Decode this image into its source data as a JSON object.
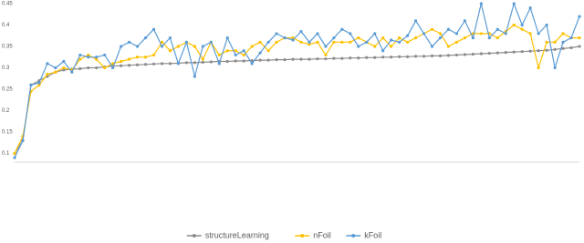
{
  "chart_data": {
    "type": "line",
    "categories": [
      null,
      null,
      null,
      null,
      null,
      null,
      null,
      null,
      null,
      null,
      null,
      null,
      null,
      null,
      null,
      null,
      null,
      null,
      null,
      null,
      null,
      null,
      null,
      null,
      null,
      null,
      null,
      null,
      null,
      null,
      null,
      null,
      null,
      null,
      null,
      null,
      null,
      null,
      null,
      null,
      null,
      null,
      null,
      null,
      null,
      null,
      null,
      null,
      null,
      null,
      null,
      null,
      null,
      null,
      null,
      null,
      null,
      null,
      null,
      null,
      null,
      null,
      null,
      null,
      null,
      null,
      null,
      null,
      null,
      null
    ],
    "series": [
      {
        "name": "structureLearning",
        "color": "#8c8c8c",
        "values": [
          0.1,
          0.13,
          0.26,
          0.27,
          0.28,
          0.29,
          0.295,
          0.297,
          0.298,
          0.3,
          0.3,
          0.302,
          0.304,
          0.305,
          0.306,
          0.307,
          0.308,
          0.309,
          0.31,
          0.31,
          0.311,
          0.312,
          0.312,
          0.313,
          0.314,
          0.315,
          0.315,
          0.316,
          0.316,
          0.317,
          0.318,
          0.318,
          0.319,
          0.319,
          0.32,
          0.32,
          0.32,
          0.321,
          0.321,
          0.322,
          0.322,
          0.323,
          0.323,
          0.324,
          0.324,
          0.325,
          0.325,
          0.326,
          0.326,
          0.327,
          0.327,
          0.328,
          0.328,
          0.329,
          0.33,
          0.331,
          0.332,
          0.333,
          0.334,
          0.335,
          0.336,
          0.337,
          0.338,
          0.339,
          0.34,
          0.341,
          0.343,
          0.345,
          0.347,
          0.35
        ]
      },
      {
        "name": "nFoil",
        "color": "#ffc000",
        "values": [
          0.1,
          0.14,
          0.245,
          0.26,
          0.285,
          0.29,
          0.3,
          0.295,
          0.32,
          0.33,
          0.32,
          0.3,
          0.31,
          0.315,
          0.32,
          0.325,
          0.325,
          0.33,
          0.36,
          0.34,
          0.35,
          0.36,
          0.35,
          0.32,
          0.36,
          0.33,
          0.34,
          0.34,
          0.33,
          0.35,
          0.36,
          0.34,
          0.36,
          0.37,
          0.37,
          0.36,
          0.355,
          0.36,
          0.33,
          0.36,
          0.36,
          0.36,
          0.37,
          0.36,
          0.35,
          0.37,
          0.35,
          0.37,
          0.36,
          0.37,
          0.38,
          0.39,
          0.38,
          0.35,
          0.36,
          0.37,
          0.38,
          0.38,
          0.38,
          0.37,
          0.385,
          0.4,
          0.39,
          0.38,
          0.3,
          0.36,
          0.36,
          0.38,
          0.37,
          0.37
        ]
      },
      {
        "name": "kFoil",
        "color": "#5b9bd5",
        "values": [
          0.09,
          0.13,
          0.26,
          0.265,
          0.31,
          0.3,
          0.315,
          0.29,
          0.33,
          0.325,
          0.325,
          0.33,
          0.3,
          0.35,
          0.36,
          0.35,
          0.37,
          0.39,
          0.35,
          0.37,
          0.31,
          0.36,
          0.28,
          0.35,
          0.36,
          0.31,
          0.37,
          0.33,
          0.34,
          0.31,
          0.335,
          0.36,
          0.38,
          0.37,
          0.365,
          0.385,
          0.36,
          0.38,
          0.35,
          0.37,
          0.39,
          0.38,
          0.35,
          0.36,
          0.38,
          0.34,
          0.365,
          0.36,
          0.375,
          0.41,
          0.38,
          0.35,
          0.37,
          0.39,
          0.38,
          0.41,
          0.37,
          0.45,
          0.37,
          0.39,
          0.38,
          0.45,
          0.4,
          0.44,
          0.38,
          0.4,
          0.3,
          0.36,
          0.37,
          0.42
        ]
      }
    ],
    "ylim": [
      0.08,
      0.45
    ],
    "yticks": [
      0.1,
      0.15,
      0.2,
      0.25,
      0.3,
      0.35,
      0.4,
      0.45
    ],
    "grid": false,
    "legend": "bottom"
  }
}
